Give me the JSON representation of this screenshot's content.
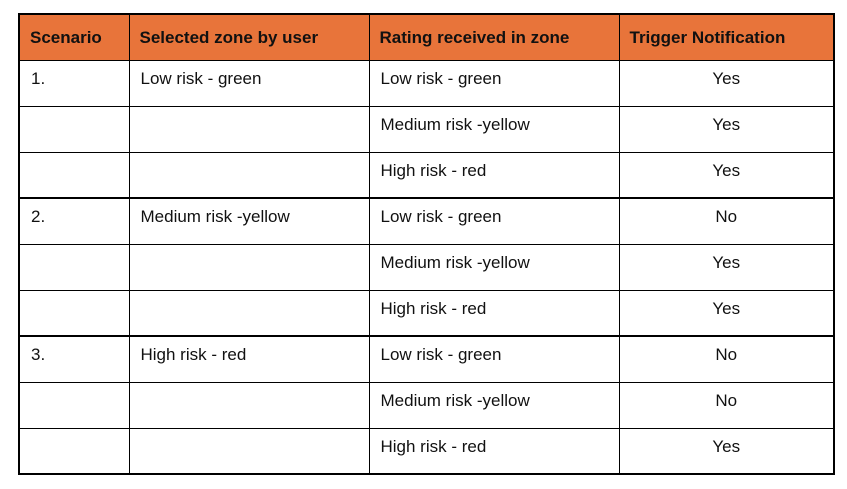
{
  "colors": {
    "header_bg": "#E8743A",
    "border": "#000000",
    "text": "#111111"
  },
  "table": {
    "headers": [
      {
        "label": "Scenario"
      },
      {
        "label": "Selected zone by user"
      },
      {
        "label": "Rating received in zone"
      },
      {
        "label": "Trigger Notification"
      }
    ],
    "rows": [
      {
        "scenario": "1.",
        "selected_zone": "Low risk - green",
        "rating": "Low risk - green",
        "trigger": "Yes",
        "group_start": false
      },
      {
        "scenario": "",
        "selected_zone": "",
        "rating": "Medium risk -yellow",
        "trigger": "Yes",
        "group_start": false
      },
      {
        "scenario": "",
        "selected_zone": "",
        "rating": "High risk - red",
        "trigger": "Yes",
        "group_start": false
      },
      {
        "scenario": "2.",
        "selected_zone": "Medium risk -yellow",
        "rating": "Low risk - green",
        "trigger": "No",
        "group_start": true
      },
      {
        "scenario": "",
        "selected_zone": "",
        "rating": "Medium risk -yellow",
        "trigger": "Yes",
        "group_start": false
      },
      {
        "scenario": "",
        "selected_zone": "",
        "rating": "High risk - red",
        "trigger": "Yes",
        "group_start": false
      },
      {
        "scenario": "3.",
        "selected_zone": "High risk - red",
        "rating": "Low risk - green",
        "trigger": "No",
        "group_start": true
      },
      {
        "scenario": "",
        "selected_zone": "",
        "rating": "Medium risk -yellow",
        "trigger": "No",
        "group_start": false
      },
      {
        "scenario": "",
        "selected_zone": "",
        "rating": "High risk - red",
        "trigger": "Yes",
        "group_start": false
      }
    ]
  }
}
